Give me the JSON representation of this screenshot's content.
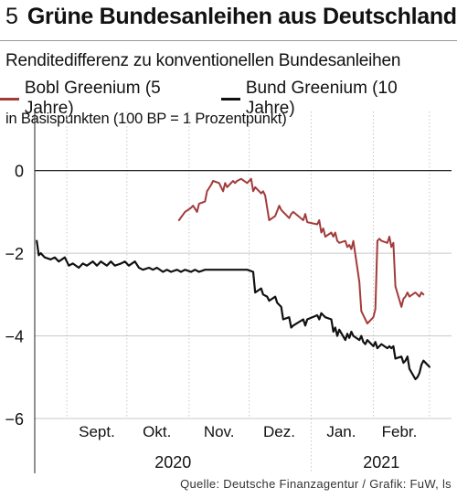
{
  "figure_number": "5",
  "title": "Grüne Bundesanleihen aus Deutschland",
  "source": "Quelle: Deutsche Finanzagentur / Grafik: FuW, ls",
  "colors": {
    "bobl": "#a33b3b",
    "bund": "#111111",
    "grid": "#c8c8c8",
    "zero": "#000000"
  },
  "chart_data": {
    "type": "line",
    "title": "Renditedifferenz zu konventionellen Bundesanleihen",
    "ylabel": "in Basispunkten (100 BP = 1 Prozentpunkt)",
    "xlabel": "",
    "ylim": [
      -6,
      0.9
    ],
    "yticks": [
      0,
      -2,
      -4,
      -6
    ],
    "ytick_labels": [
      "0",
      "−2",
      "−4",
      "−6"
    ],
    "xlim": [
      "2020-08-16",
      "2021-03-12"
    ],
    "months": [
      {
        "label": "Sept.",
        "center": "2020-09-16"
      },
      {
        "label": "Okt.",
        "center": "2020-10-16"
      },
      {
        "label": "Nov.",
        "center": "2020-11-16"
      },
      {
        "label": "Dez.",
        "center": "2020-12-16"
      },
      {
        "label": "Jan.",
        "center": "2021-01-16"
      },
      {
        "label": "Febr.",
        "center": "2021-02-14"
      }
    ],
    "month_boundaries": [
      "2020-09-01",
      "2020-10-01",
      "2020-11-01",
      "2020-12-01",
      "2021-01-01",
      "2021-02-01",
      "2021-03-01"
    ],
    "years": [
      {
        "label": "2020",
        "center": "2020-10-24"
      },
      {
        "label": "2021",
        "center": "2021-02-05"
      }
    ],
    "year_boundary": "2021-01-01",
    "legend_position": "top-left",
    "grid": true,
    "series": [
      {
        "name": "Bobl Greenium (5 Jahre)",
        "color": "#a33b3b",
        "points": [
          [
            "2020-10-27",
            -1.2
          ],
          [
            "2020-10-30",
            -1.0
          ],
          [
            "2020-11-02",
            -0.9
          ],
          [
            "2020-11-03",
            -0.85
          ],
          [
            "2020-11-05",
            -1.0
          ],
          [
            "2020-11-06",
            -0.8
          ],
          [
            "2020-11-09",
            -0.75
          ],
          [
            "2020-11-10",
            -0.5
          ],
          [
            "2020-11-12",
            -0.35
          ],
          [
            "2020-11-13",
            -0.25
          ],
          [
            "2020-11-16",
            -0.3
          ],
          [
            "2020-11-18",
            -0.5
          ],
          [
            "2020-11-19",
            -0.3
          ],
          [
            "2020-11-20",
            -0.4
          ],
          [
            "2020-11-23",
            -0.25
          ],
          [
            "2020-11-24",
            -0.3
          ],
          [
            "2020-11-25",
            -0.25
          ],
          [
            "2020-11-27",
            -0.2
          ],
          [
            "2020-11-30",
            -0.3
          ],
          [
            "2020-12-01",
            -0.25
          ],
          [
            "2020-12-02",
            -0.2
          ],
          [
            "2020-12-03",
            -0.5
          ],
          [
            "2020-12-04",
            -0.4
          ],
          [
            "2020-12-07",
            -0.55
          ],
          [
            "2020-12-08",
            -0.5
          ],
          [
            "2020-12-09",
            -0.6
          ],
          [
            "2020-12-11",
            -1.2
          ],
          [
            "2020-12-14",
            -1.1
          ],
          [
            "2020-12-16",
            -0.85
          ],
          [
            "2020-12-17",
            -0.95
          ],
          [
            "2020-12-18",
            -1.0
          ],
          [
            "2020-12-21",
            -1.15
          ],
          [
            "2020-12-22",
            -1.05
          ],
          [
            "2020-12-23",
            -1.0
          ],
          [
            "2020-12-28",
            -1.2
          ],
          [
            "2020-12-29",
            -1.05
          ],
          [
            "2020-12-30",
            -1.25
          ],
          [
            "2021-01-04",
            -1.3
          ],
          [
            "2021-01-05",
            -1.2
          ],
          [
            "2021-01-06",
            -1.5
          ],
          [
            "2021-01-07",
            -1.4
          ],
          [
            "2021-01-08",
            -1.6
          ],
          [
            "2021-01-11",
            -1.5
          ],
          [
            "2021-01-12",
            -1.6
          ],
          [
            "2021-01-13",
            -1.5
          ],
          [
            "2021-01-14",
            -1.7
          ],
          [
            "2021-01-15",
            -1.75
          ],
          [
            "2021-01-18",
            -1.7
          ],
          [
            "2021-01-19",
            -1.85
          ],
          [
            "2021-01-20",
            -1.8
          ],
          [
            "2021-01-21",
            -1.9
          ],
          [
            "2021-01-22",
            -1.7
          ],
          [
            "2021-01-25",
            -2.7
          ],
          [
            "2021-01-26",
            -3.4
          ],
          [
            "2021-01-27",
            -3.5
          ],
          [
            "2021-01-28",
            -3.6
          ],
          [
            "2021-01-29",
            -3.7
          ],
          [
            "2021-02-01",
            -3.55
          ],
          [
            "2021-02-02",
            -3.35
          ],
          [
            "2021-02-03",
            -1.7
          ],
          [
            "2021-02-04",
            -1.65
          ],
          [
            "2021-02-05",
            -1.7
          ],
          [
            "2021-02-08",
            -1.75
          ],
          [
            "2021-02-09",
            -1.6
          ],
          [
            "2021-02-10",
            -1.85
          ],
          [
            "2021-02-11",
            -1.75
          ],
          [
            "2021-02-12",
            -2.8
          ],
          [
            "2021-02-15",
            -3.3
          ],
          [
            "2021-02-16",
            -3.1
          ],
          [
            "2021-02-17",
            -3.05
          ],
          [
            "2021-02-18",
            -2.95
          ],
          [
            "2021-02-19",
            -3.05
          ],
          [
            "2021-02-22",
            -2.95
          ],
          [
            "2021-02-23",
            -3.0
          ],
          [
            "2021-02-24",
            -3.05
          ],
          [
            "2021-02-25",
            -2.95
          ],
          [
            "2021-02-26",
            -3.0
          ]
        ]
      },
      {
        "name": "Bund Greenium (10 Jahre)",
        "color": "#111111",
        "points": [
          [
            "2020-08-17",
            -1.7
          ],
          [
            "2020-08-18",
            -2.05
          ],
          [
            "2020-08-19",
            -2.0
          ],
          [
            "2020-08-21",
            -2.1
          ],
          [
            "2020-08-24",
            -2.15
          ],
          [
            "2020-08-26",
            -2.1
          ],
          [
            "2020-08-28",
            -2.2
          ],
          [
            "2020-08-31",
            -2.1
          ],
          [
            "2020-09-02",
            -2.3
          ],
          [
            "2020-09-04",
            -2.25
          ],
          [
            "2020-09-07",
            -2.35
          ],
          [
            "2020-09-09",
            -2.25
          ],
          [
            "2020-09-11",
            -2.3
          ],
          [
            "2020-09-14",
            -2.2
          ],
          [
            "2020-09-16",
            -2.3
          ],
          [
            "2020-09-18",
            -2.2
          ],
          [
            "2020-09-21",
            -2.3
          ],
          [
            "2020-09-23",
            -2.2
          ],
          [
            "2020-09-25",
            -2.3
          ],
          [
            "2020-09-28",
            -2.25
          ],
          [
            "2020-09-30",
            -2.2
          ],
          [
            "2020-10-02",
            -2.3
          ],
          [
            "2020-10-05",
            -2.2
          ],
          [
            "2020-10-07",
            -2.35
          ],
          [
            "2020-10-09",
            -2.4
          ],
          [
            "2020-10-12",
            -2.35
          ],
          [
            "2020-10-14",
            -2.4
          ],
          [
            "2020-10-16",
            -2.35
          ],
          [
            "2020-10-19",
            -2.45
          ],
          [
            "2020-10-21",
            -2.4
          ],
          [
            "2020-10-23",
            -2.45
          ],
          [
            "2020-10-26",
            -2.4
          ],
          [
            "2020-10-28",
            -2.45
          ],
          [
            "2020-10-30",
            -2.4
          ],
          [
            "2020-11-02",
            -2.45
          ],
          [
            "2020-11-04",
            -2.4
          ],
          [
            "2020-11-06",
            -2.45
          ],
          [
            "2020-11-09",
            -2.4
          ],
          [
            "2020-11-12",
            -2.4
          ],
          [
            "2020-11-16",
            -2.4
          ],
          [
            "2020-11-19",
            -2.4
          ],
          [
            "2020-11-23",
            -2.4
          ],
          [
            "2020-11-26",
            -2.4
          ],
          [
            "2020-11-30",
            -2.4
          ],
          [
            "2020-12-03",
            -2.45
          ],
          [
            "2020-12-04",
            -2.95
          ],
          [
            "2020-12-07",
            -2.85
          ],
          [
            "2020-12-08",
            -3.0
          ],
          [
            "2020-12-10",
            -3.05
          ],
          [
            "2020-12-11",
            -3.15
          ],
          [
            "2020-12-14",
            -3.05
          ],
          [
            "2020-12-15",
            -3.2
          ],
          [
            "2020-12-17",
            -3.3
          ],
          [
            "2020-12-18",
            -3.6
          ],
          [
            "2020-12-21",
            -3.55
          ],
          [
            "2020-12-22",
            -3.8
          ],
          [
            "2020-12-23",
            -3.75
          ],
          [
            "2020-12-28",
            -3.6
          ],
          [
            "2020-12-29",
            -3.75
          ],
          [
            "2020-12-30",
            -3.6
          ],
          [
            "2021-01-04",
            -3.5
          ],
          [
            "2021-01-05",
            -3.6
          ],
          [
            "2021-01-06",
            -3.45
          ],
          [
            "2021-01-07",
            -3.5
          ],
          [
            "2021-01-08",
            -3.55
          ],
          [
            "2021-01-11",
            -3.6
          ],
          [
            "2021-01-12",
            -3.9
          ],
          [
            "2021-01-13",
            -3.8
          ],
          [
            "2021-01-14",
            -4.0
          ],
          [
            "2021-01-15",
            -3.85
          ],
          [
            "2021-01-18",
            -4.1
          ],
          [
            "2021-01-19",
            -3.95
          ],
          [
            "2021-01-20",
            -4.05
          ],
          [
            "2021-01-21",
            -3.9
          ],
          [
            "2021-01-22",
            -4.0
          ],
          [
            "2021-01-25",
            -4.1
          ],
          [
            "2021-01-26",
            -4.0
          ],
          [
            "2021-01-27",
            -4.15
          ],
          [
            "2021-01-28",
            -4.2
          ],
          [
            "2021-01-29",
            -4.1
          ],
          [
            "2021-02-01",
            -4.25
          ],
          [
            "2021-02-02",
            -4.15
          ],
          [
            "2021-02-03",
            -4.3
          ],
          [
            "2021-02-04",
            -4.25
          ],
          [
            "2021-02-05",
            -4.2
          ],
          [
            "2021-02-08",
            -4.3
          ],
          [
            "2021-02-09",
            -4.25
          ],
          [
            "2021-02-10",
            -4.3
          ],
          [
            "2021-02-11",
            -4.25
          ],
          [
            "2021-02-12",
            -4.55
          ],
          [
            "2021-02-15",
            -4.5
          ],
          [
            "2021-02-16",
            -4.65
          ],
          [
            "2021-02-17",
            -4.6
          ],
          [
            "2021-02-18",
            -4.5
          ],
          [
            "2021-02-19",
            -4.8
          ],
          [
            "2021-02-22",
            -5.05
          ],
          [
            "2021-02-23",
            -5.0
          ],
          [
            "2021-02-24",
            -4.9
          ],
          [
            "2021-02-25",
            -4.7
          ],
          [
            "2021-02-26",
            -4.6
          ],
          [
            "2021-03-01",
            -4.75
          ]
        ]
      }
    ]
  }
}
